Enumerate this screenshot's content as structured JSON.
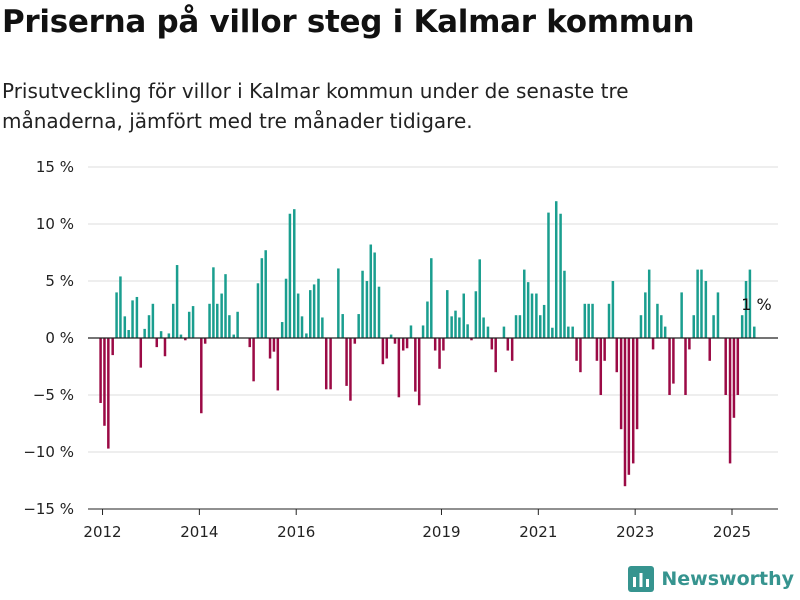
{
  "header": {
    "title": "Priserna på villor steg i Kalmar kommun",
    "subtitle": "Prisutveckling för villor i Kalmar kommun under de senaste tre månaderna, jämfört med tre månader tidigare."
  },
  "brand": {
    "name": "Newsworthy",
    "logo_icon": "bar-chart-logo-icon"
  },
  "colors": {
    "positive": "#1a9e8f",
    "negative": "#9b0a45",
    "grid": "#dddddd",
    "zero": "#222222"
  },
  "chart_data": {
    "type": "bar",
    "ylim": [
      -15,
      15
    ],
    "yticks": [
      15,
      10,
      5,
      0,
      -5,
      -10,
      -15
    ],
    "ytick_labels": [
      "15 %",
      "10 %",
      "5 %",
      "0 %",
      "−5 %",
      "−10 %",
      "−15 %"
    ],
    "xlim": [
      2011.7,
      2025.95
    ],
    "xticks": [
      2012,
      2014,
      2016,
      2019,
      2021,
      2023,
      2025
    ],
    "xtick_labels": [
      "2012",
      "2014",
      "2016",
      "2019",
      "2021",
      "2023",
      "2025"
    ],
    "grid": true,
    "series": [
      {
        "x": [
          2011.96,
          2012.04,
          2012.12,
          2012.21,
          2012.29,
          2012.37,
          2012.46,
          2012.54,
          2012.62,
          2012.71,
          2012.79,
          2012.87,
          2012.96,
          2013.04,
          2013.12,
          2013.21,
          2013.29,
          2013.37,
          2013.46,
          2013.54,
          2013.62,
          2013.71,
          2013.79,
          2013.87,
          2013.96,
          2014.04,
          2014.12,
          2014.21,
          2014.29,
          2014.37,
          2014.46,
          2014.54,
          2014.62,
          2014.71,
          2014.79,
          2014.87,
          2014.96,
          2015.04,
          2015.12,
          2015.21,
          2015.29,
          2015.37,
          2015.46,
          2015.54,
          2015.62,
          2015.71,
          2015.79,
          2015.87,
          2015.96,
          2016.04,
          2016.12,
          2016.21,
          2016.29,
          2016.37,
          2016.46,
          2016.54,
          2016.62,
          2016.71,
          2016.79,
          2016.87,
          2016.96,
          2017.04,
          2017.12,
          2017.21,
          2017.29,
          2017.37,
          2017.46,
          2017.54,
          2017.62,
          2017.71,
          2017.79,
          2017.87,
          2017.96,
          2018.04,
          2018.12,
          2018.21,
          2018.29,
          2018.37,
          2018.46,
          2018.54,
          2018.62,
          2018.71,
          2018.79,
          2018.87,
          2018.96,
          2019.04,
          2019.12,
          2019.21,
          2019.29,
          2019.37,
          2019.46,
          2019.54,
          2019.62,
          2019.71,
          2019.79,
          2019.87,
          2019.96,
          2020.04,
          2020.12,
          2020.21,
          2020.29,
          2020.37,
          2020.46,
          2020.54,
          2020.62,
          2020.71,
          2020.79,
          2020.87,
          2020.96,
          2021.04,
          2021.12,
          2021.21,
          2021.29,
          2021.37,
          2021.46,
          2021.54,
          2021.62,
          2021.71,
          2021.79,
          2021.87,
          2021.96,
          2022.04,
          2022.12,
          2022.21,
          2022.29,
          2022.37,
          2022.46,
          2022.54,
          2022.62,
          2022.71,
          2022.79,
          2022.87,
          2022.96,
          2023.04,
          2023.12,
          2023.21,
          2023.29,
          2023.37,
          2023.46,
          2023.54,
          2023.62,
          2023.71,
          2023.79,
          2023.87,
          2023.96,
          2024.04,
          2024.12,
          2024.21,
          2024.29,
          2024.37,
          2024.46,
          2024.54,
          2024.62,
          2024.71,
          2024.79,
          2024.87,
          2024.96,
          2025.04,
          2025.12,
          2025.21,
          2025.29,
          2025.37,
          2025.46
        ],
        "values": [
          -5.7,
          -7.7,
          -9.7,
          -1.5,
          4.0,
          5.4,
          1.9,
          0.7,
          3.3,
          3.6,
          -2.6,
          0.8,
          2.0,
          3.0,
          -0.8,
          0.6,
          -1.6,
          0.4,
          3.0,
          6.4,
          0.3,
          -0.2,
          2.3,
          2.8,
          0.0,
          -6.6,
          -0.5,
          3.0,
          6.2,
          3.0,
          3.9,
          5.6,
          2.0,
          0.3,
          2.3,
          0.0,
          0.0,
          -0.8,
          -3.8,
          4.8,
          7.0,
          7.7,
          -1.8,
          -1.2,
          -4.6,
          1.4,
          5.2,
          10.9,
          11.3,
          3.9,
          1.9,
          0.4,
          4.2,
          4.7,
          5.2,
          1.8,
          -4.5,
          -4.5,
          0.0,
          6.1,
          2.1,
          -4.2,
          -5.5,
          -0.5,
          2.1,
          5.9,
          5.0,
          8.2,
          7.5,
          4.5,
          -2.3,
          -1.8,
          0.3,
          -0.5,
          -5.2,
          -1.1,
          -0.9,
          1.1,
          -4.7,
          -5.9,
          1.1,
          3.2,
          7.0,
          -1.1,
          -2.7,
          -1.1,
          4.2,
          1.9,
          2.4,
          1.8,
          3.9,
          1.2,
          -0.2,
          4.1,
          6.9,
          1.8,
          1.0,
          -1.0,
          -3.0,
          0.0,
          1.0,
          -1.1,
          -2.0,
          2.0,
          2.0,
          6.0,
          4.9,
          3.9,
          3.9,
          2.0,
          2.9,
          11.0,
          0.9,
          12.0,
          10.9,
          5.9,
          1.0,
          1.0,
          -2.0,
          -3.0,
          3.0,
          3.0,
          3.0,
          -2.0,
          -5.0,
          -2.0,
          3.0,
          5.0,
          -3.0,
          -8.0,
          -13.0,
          -12.0,
          -11.0,
          -8.0,
          2.0,
          4.0,
          6.0,
          -1.0,
          3.0,
          2.0,
          1.0,
          -5.0,
          -4.0,
          0.0,
          4.0,
          -5.0,
          -1.0,
          2.0,
          6.0,
          6.0,
          5.0,
          -2.0,
          2.0,
          4.0,
          0.0,
          -5.0,
          -11.0,
          -7.0,
          -5.0,
          2.0,
          5.0,
          6.0,
          1.0
        ]
      }
    ],
    "annotations": [
      {
        "text": "1 %",
        "x": 2025.46,
        "y": 1.0
      }
    ]
  }
}
